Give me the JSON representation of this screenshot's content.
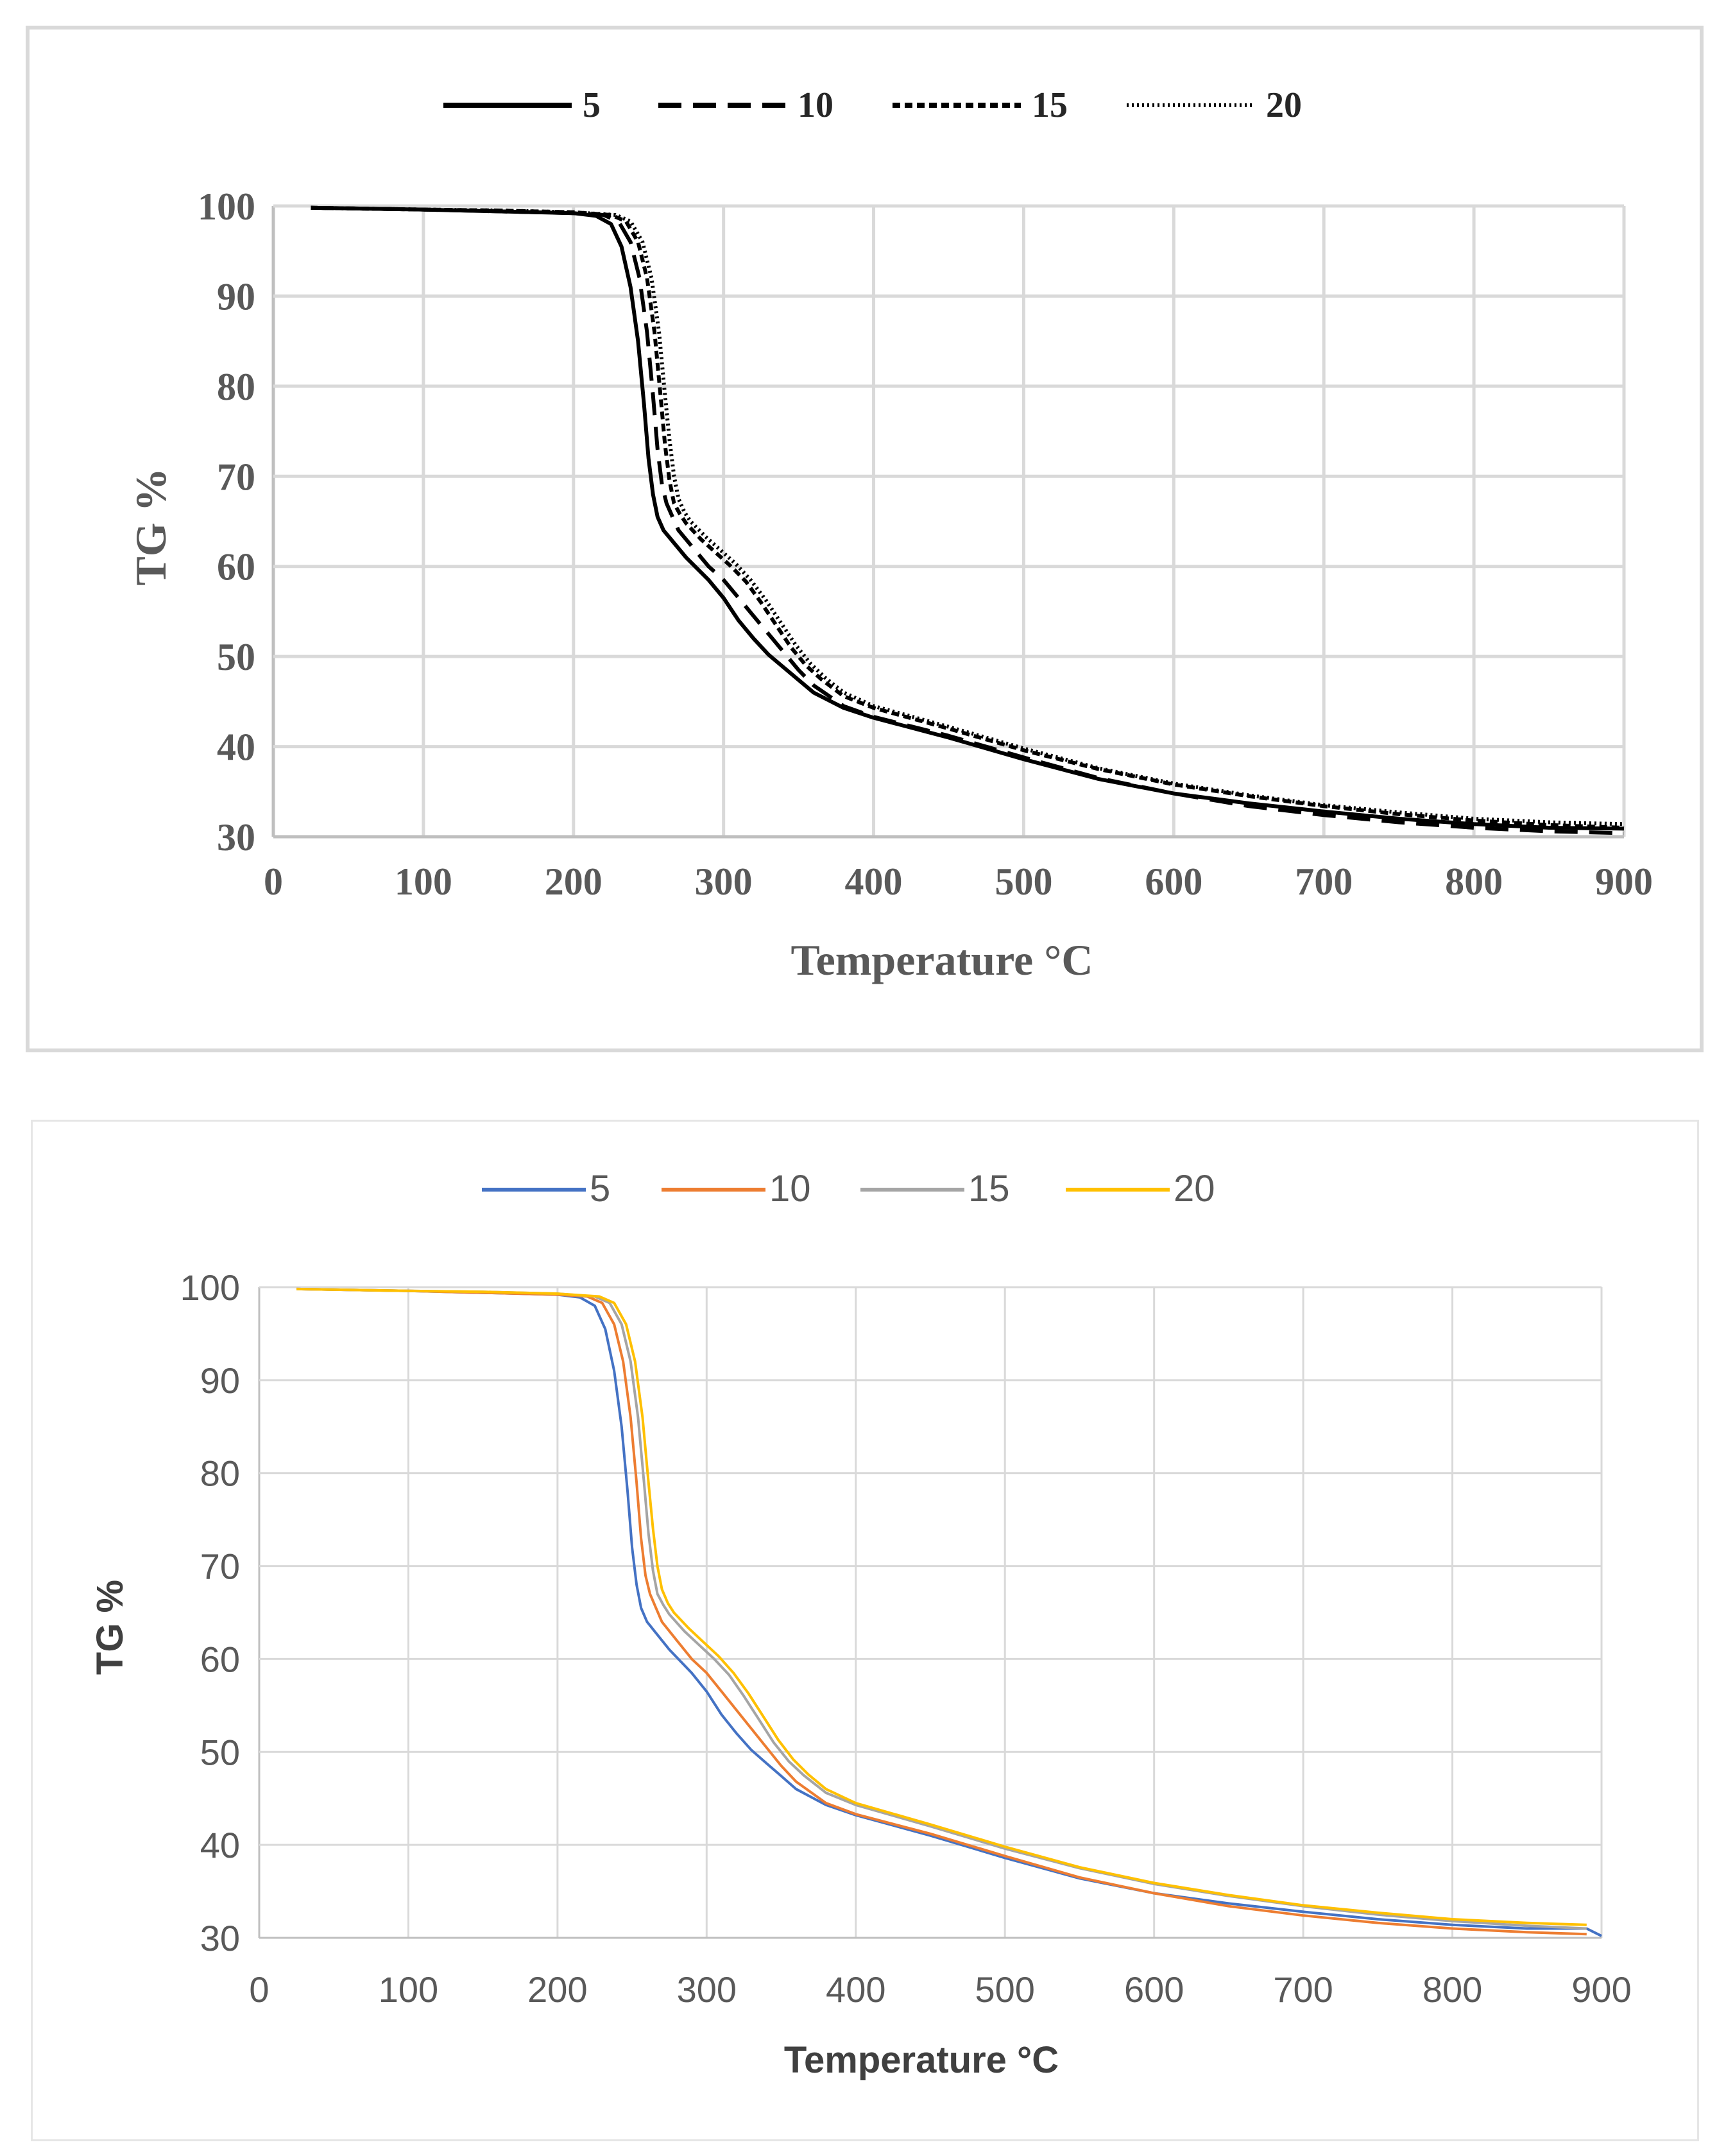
{
  "chart_data": [
    {
      "type": "line",
      "style": "monochrome",
      "title": "",
      "xlabel": "Temperature °C",
      "ylabel": "TG %",
      "xlim": [
        0,
        900
      ],
      "ylim": [
        30,
        100
      ],
      "xticks": [
        0,
        100,
        200,
        300,
        400,
        500,
        600,
        700,
        800,
        900
      ],
      "yticks": [
        30,
        40,
        50,
        60,
        70,
        80,
        90,
        100
      ],
      "grid": true,
      "legend_position": "top",
      "series": [
        {
          "name": "5",
          "line_style": "solid",
          "color": "#000000",
          "x": [
            25,
            100,
            150,
            200,
            215,
            225,
            232,
            238,
            243,
            247,
            250,
            253,
            256,
            260,
            265,
            275,
            290,
            300,
            310,
            320,
            330,
            340,
            350,
            360,
            380,
            400,
            450,
            500,
            550,
            600,
            650,
            700,
            750,
            800,
            850,
            900
          ],
          "y": [
            99.8,
            99.6,
            99.4,
            99.2,
            98.9,
            98.0,
            95.5,
            91.0,
            85.0,
            78.0,
            72.0,
            68.0,
            65.5,
            64.0,
            63.0,
            61.0,
            58.5,
            56.5,
            54.0,
            52.0,
            50.2,
            48.8,
            47.4,
            46.0,
            44.3,
            43.2,
            41.0,
            38.6,
            36.4,
            34.8,
            33.7,
            32.8,
            32.0,
            31.4,
            31.0,
            30.9
          ]
        },
        {
          "name": "10",
          "line_style": "dashed",
          "color": "#000000",
          "x": [
            25,
            100,
            150,
            200,
            220,
            230,
            238,
            244,
            249,
            253,
            256,
            259,
            262,
            266,
            270,
            280,
            290,
            300,
            310,
            320,
            330,
            340,
            350,
            360,
            380,
            400,
            450,
            500,
            550,
            600,
            650,
            700,
            750,
            800,
            850,
            900
          ],
          "y": [
            99.8,
            99.6,
            99.4,
            99.2,
            99.0,
            98.3,
            96.0,
            92.0,
            86.0,
            79.0,
            73.0,
            69.0,
            67.0,
            65.5,
            64.0,
            62.0,
            60.0,
            58.5,
            56.5,
            54.5,
            52.5,
            50.5,
            48.5,
            46.8,
            44.5,
            43.3,
            41.2,
            38.8,
            36.5,
            34.8,
            33.4,
            32.4,
            31.6,
            31.0,
            30.6,
            30.4
          ]
        },
        {
          "name": "15",
          "line_style": "short-dashed",
          "color": "#000000",
          "x": [
            25,
            100,
            150,
            200,
            225,
            235,
            243,
            249,
            254,
            258,
            261,
            264,
            267,
            271,
            275,
            285,
            295,
            305,
            315,
            325,
            335,
            345,
            355,
            365,
            380,
            400,
            450,
            500,
            550,
            600,
            650,
            700,
            750,
            800,
            850,
            900
          ],
          "y": [
            99.8,
            99.6,
            99.5,
            99.3,
            99.0,
            98.3,
            96.0,
            92.0,
            86.0,
            79.0,
            73.5,
            69.5,
            67.0,
            65.8,
            64.8,
            63.0,
            61.5,
            60.0,
            58.3,
            56.0,
            53.5,
            51.0,
            49.0,
            47.5,
            45.6,
            44.3,
            42.0,
            39.6,
            37.5,
            35.8,
            34.5,
            33.4,
            32.5,
            31.8,
            31.3,
            31.0
          ]
        },
        {
          "name": "20",
          "line_style": "dotted",
          "color": "#000000",
          "x": [
            25,
            100,
            150,
            200,
            228,
            238,
            246,
            252,
            257,
            261,
            264,
            267,
            270,
            274,
            278,
            288,
            298,
            308,
            318,
            328,
            338,
            348,
            358,
            368,
            380,
            400,
            450,
            500,
            550,
            600,
            650,
            700,
            750,
            800,
            850,
            900
          ],
          "y": [
            99.8,
            99.6,
            99.5,
            99.3,
            99.0,
            98.3,
            96.0,
            92.0,
            86.0,
            79.0,
            74.0,
            70.0,
            67.5,
            66.0,
            65.0,
            63.3,
            61.8,
            60.3,
            58.5,
            56.3,
            53.8,
            51.3,
            49.2,
            47.6,
            46.0,
            44.5,
            42.2,
            39.8,
            37.6,
            35.9,
            34.6,
            33.5,
            32.7,
            32.0,
            31.6,
            31.4
          ]
        }
      ]
    },
    {
      "type": "line",
      "style": "color",
      "title": "",
      "xlabel": "Temperature °C",
      "ylabel": "TG %",
      "xlim": [
        0,
        900
      ],
      "ylim": [
        30,
        100
      ],
      "xticks": [
        0,
        100,
        200,
        300,
        400,
        500,
        600,
        700,
        800,
        900
      ],
      "yticks": [
        30,
        40,
        50,
        60,
        70,
        80,
        90,
        100
      ],
      "grid": true,
      "legend_position": "top",
      "series": [
        {
          "name": "5",
          "line_style": "solid",
          "color": "#4472C4",
          "x": [
            25,
            100,
            150,
            200,
            215,
            225,
            232,
            238,
            243,
            247,
            250,
            253,
            256,
            260,
            265,
            275,
            290,
            300,
            310,
            320,
            330,
            340,
            350,
            360,
            380,
            400,
            450,
            500,
            550,
            600,
            650,
            700,
            750,
            800,
            850,
            890,
            900
          ],
          "y": [
            99.8,
            99.6,
            99.4,
            99.2,
            98.9,
            98.0,
            95.5,
            91.0,
            85.0,
            78.0,
            72.0,
            68.0,
            65.5,
            64.0,
            63.0,
            61.0,
            58.5,
            56.5,
            54.0,
            52.0,
            50.2,
            48.8,
            47.4,
            46.0,
            44.3,
            43.2,
            41.0,
            38.6,
            36.4,
            34.8,
            33.7,
            32.8,
            32.0,
            31.4,
            31.0,
            31.0,
            30.2
          ]
        },
        {
          "name": "10",
          "line_style": "solid",
          "color": "#ED7D31",
          "x": [
            25,
            100,
            150,
            200,
            220,
            230,
            238,
            244,
            249,
            253,
            256,
            259,
            262,
            266,
            270,
            280,
            290,
            300,
            310,
            320,
            330,
            340,
            350,
            360,
            380,
            400,
            450,
            500,
            550,
            600,
            650,
            700,
            750,
            800,
            850,
            890
          ],
          "y": [
            99.8,
            99.6,
            99.4,
            99.2,
            99.0,
            98.3,
            96.0,
            92.0,
            86.0,
            79.0,
            73.0,
            69.0,
            67.0,
            65.5,
            64.0,
            62.0,
            60.0,
            58.5,
            56.5,
            54.5,
            52.5,
            50.5,
            48.5,
            46.8,
            44.5,
            43.3,
            41.2,
            38.8,
            36.5,
            34.8,
            33.4,
            32.4,
            31.6,
            31.0,
            30.6,
            30.4
          ]
        },
        {
          "name": "15",
          "line_style": "solid",
          "color": "#A5A5A5",
          "x": [
            25,
            100,
            150,
            200,
            225,
            235,
            243,
            249,
            254,
            258,
            261,
            264,
            267,
            271,
            275,
            285,
            295,
            305,
            315,
            325,
            335,
            345,
            355,
            365,
            380,
            400,
            450,
            500,
            550,
            600,
            650,
            700,
            750,
            800,
            850,
            890
          ],
          "y": [
            99.8,
            99.6,
            99.5,
            99.3,
            99.0,
            98.3,
            96.0,
            92.0,
            86.0,
            79.0,
            73.5,
            69.5,
            67.0,
            65.8,
            64.8,
            63.0,
            61.5,
            60.0,
            58.3,
            56.0,
            53.5,
            51.0,
            49.0,
            47.5,
            45.6,
            44.3,
            42.0,
            39.6,
            37.5,
            35.8,
            34.5,
            33.4,
            32.5,
            31.8,
            31.3,
            31.0
          ]
        },
        {
          "name": "20",
          "line_style": "solid",
          "color": "#FFC000",
          "x": [
            25,
            100,
            150,
            200,
            228,
            238,
            246,
            252,
            257,
            261,
            264,
            267,
            270,
            274,
            278,
            288,
            298,
            308,
            318,
            328,
            338,
            348,
            358,
            368,
            380,
            400,
            450,
            500,
            550,
            600,
            650,
            700,
            750,
            800,
            850,
            890
          ],
          "y": [
            99.8,
            99.6,
            99.5,
            99.3,
            99.0,
            98.3,
            96.0,
            92.0,
            86.0,
            79.0,
            74.0,
            70.0,
            67.5,
            66.0,
            65.0,
            63.3,
            61.8,
            60.3,
            58.5,
            56.3,
            53.8,
            51.3,
            49.2,
            47.6,
            46.0,
            44.5,
            42.2,
            39.8,
            37.6,
            35.9,
            34.6,
            33.5,
            32.7,
            32.0,
            31.6,
            31.4
          ]
        }
      ]
    }
  ]
}
